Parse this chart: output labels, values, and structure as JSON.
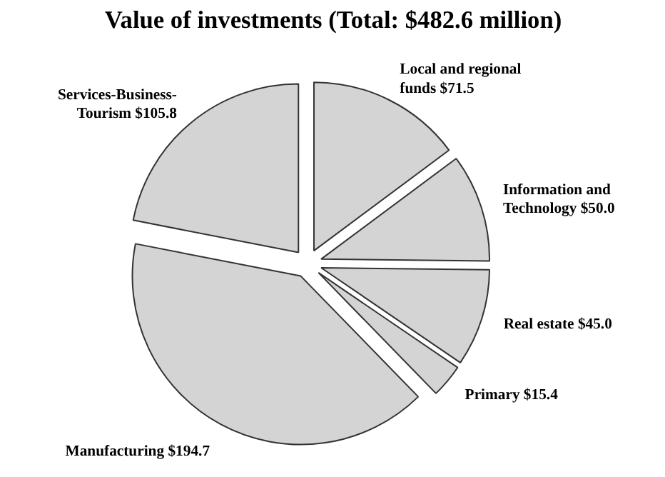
{
  "chart_data": {
    "type": "pie",
    "title": "Value of investments (Total: $482.6 million)",
    "categories": [
      "Local and regional funds",
      "Information and Technology",
      "Real estate",
      "Primary",
      "Manufacturing",
      "Services-Business-Tourism"
    ],
    "values": [
      71.5,
      50.0,
      45.0,
      15.4,
      194.7,
      105.8
    ],
    "value_labels": [
      "$71.5",
      "$50.0",
      "$45.0",
      "$15.4",
      "$194.7",
      "$105.8"
    ],
    "colors": [
      "#d4d4d4",
      "#d4d4d4",
      "#d4d4d4",
      "#d4d4d4",
      "#d4d4d4",
      "#d4d4d4"
    ]
  }
}
